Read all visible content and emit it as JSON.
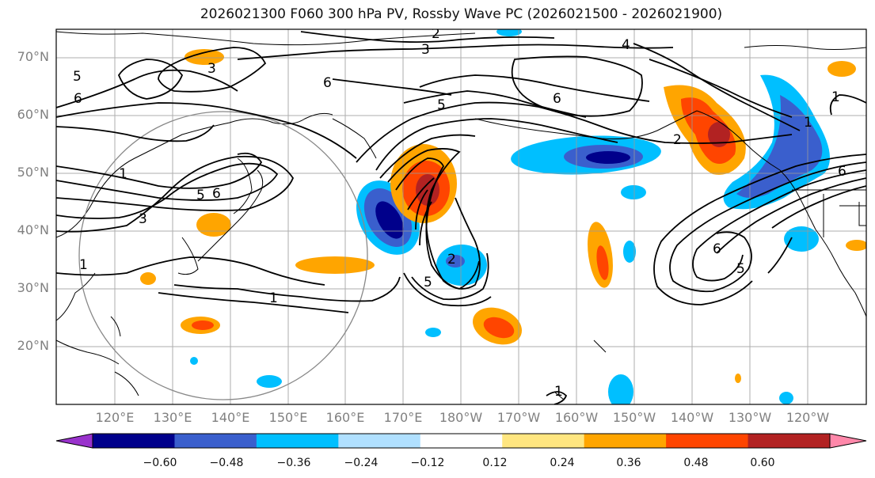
{
  "title": "2026021300 F060 300 hPa PV, Rossby Wave PC (2026021500 - 2026021900)",
  "lat_labels": [
    "70°N",
    "60°N",
    "50°N",
    "40°N",
    "30°N",
    "20°N"
  ],
  "lon_labels": [
    "120°E",
    "130°E",
    "140°E",
    "150°E",
    "160°E",
    "170°E",
    "180°W",
    "170°W",
    "160°W",
    "150°W",
    "140°W",
    "130°W",
    "120°W"
  ],
  "colorbar": {
    "ticks": [
      "−0.60",
      "−0.48",
      "−0.36",
      "−0.24",
      "−0.12",
      "0.12",
      "0.24",
      "0.36",
      "0.48",
      "0.60"
    ],
    "colors": [
      "#9932cc",
      "#00008b",
      "#3a5fcd",
      "#00bfff",
      "#b0e0ff",
      "#ffffff",
      "#ffe680",
      "#ffa500",
      "#ff4500",
      "#b22222",
      "#ff88aa"
    ]
  },
  "contour_labels": [
    "1",
    "1",
    "1",
    "1",
    "1",
    "1",
    "2",
    "2",
    "2",
    "3",
    "3",
    "3",
    "4",
    "5",
    "5",
    "5",
    "5",
    "5",
    "6",
    "6",
    "6",
    "6",
    "6",
    "6"
  ],
  "colors": {
    "deep_blue": "#00008b",
    "mid_blue": "#3a5fcd",
    "light_blue": "#00bfff",
    "pale_blue": "#b0e0ff",
    "pale_yellow": "#ffe680",
    "orange": "#ffa500",
    "red_orange": "#ff4500",
    "dark_red": "#b22222",
    "purple": "#9932cc"
  }
}
